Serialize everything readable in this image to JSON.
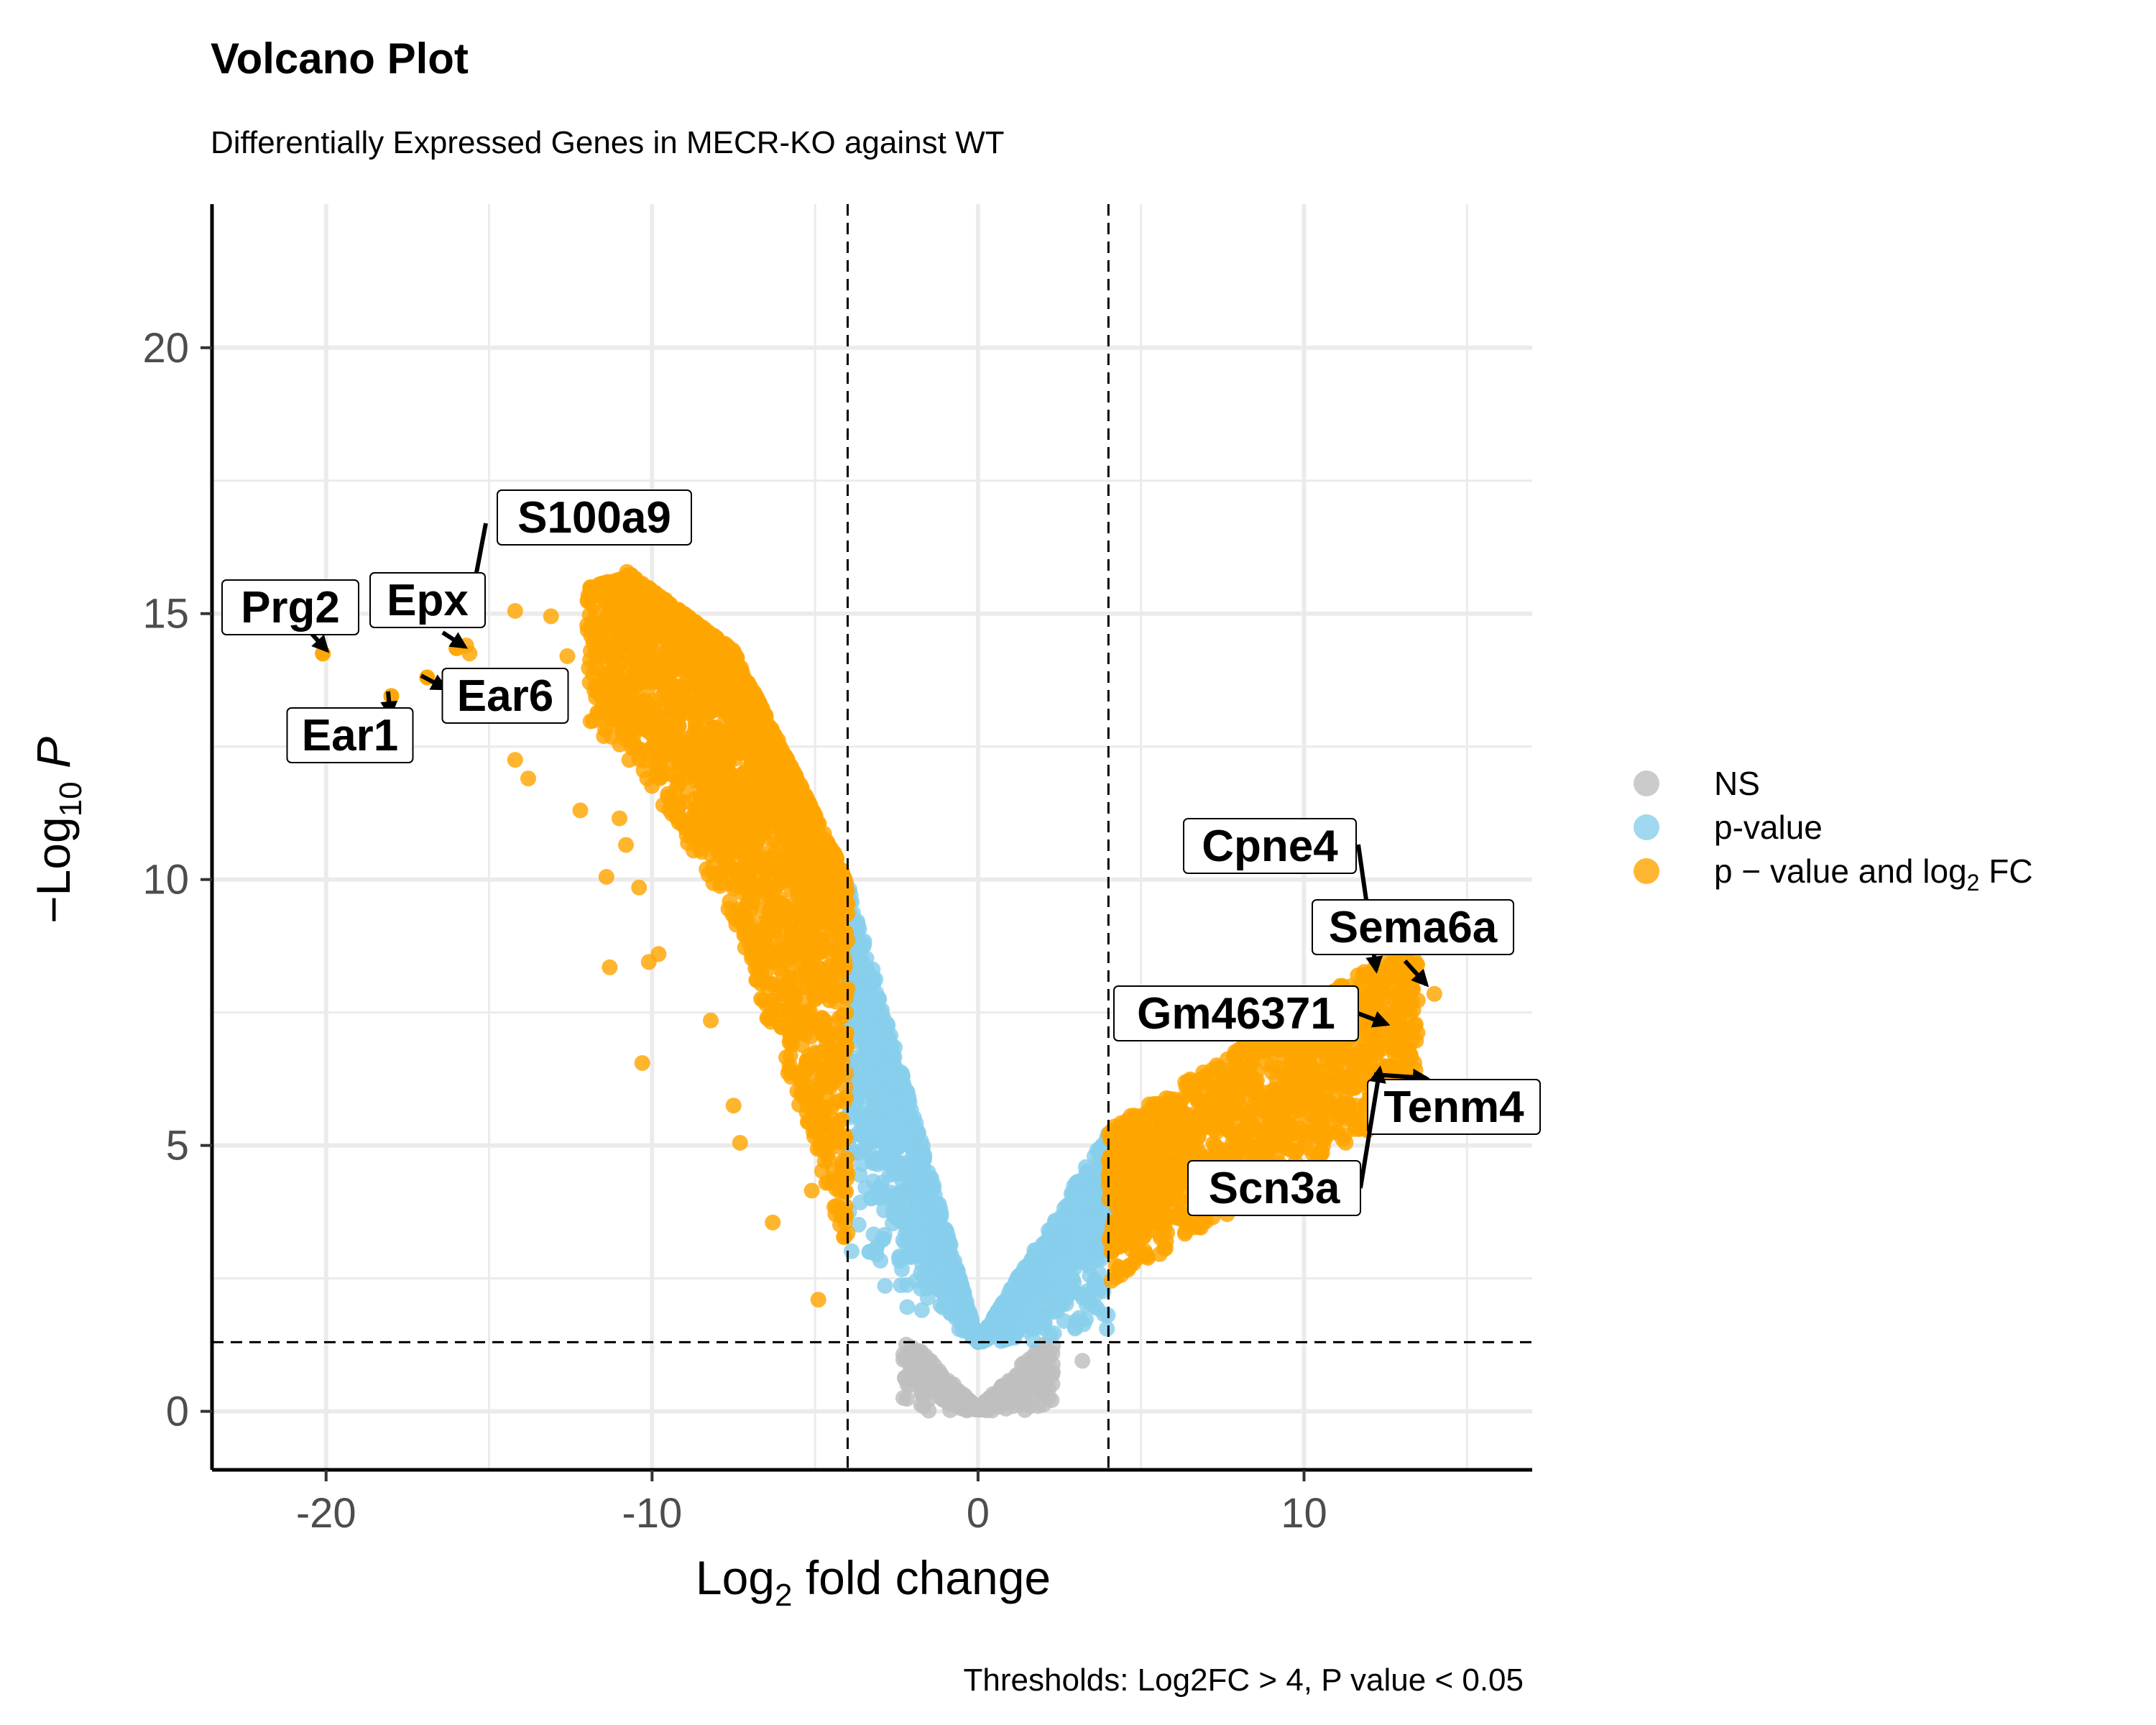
{
  "chart_data": {
    "type": "scatter",
    "title": "Volcano Plot",
    "subtitle": "Differentially Expressed Genes in MECR-KO against WT",
    "caption": "Thresholds: Log2FC > 4, P value < 0.05",
    "xlabel": {
      "pre": "Log",
      "sub": "2",
      "post": " fold change"
    },
    "ylabel": {
      "pre": "−Log",
      "sub": "10",
      "post": " P"
    },
    "xlim": [
      -23.5,
      17
    ],
    "ylim": [
      -1.1,
      22.7
    ],
    "x_ticks": [
      -20,
      -10,
      0,
      10
    ],
    "x_tick_labels": [
      "-20",
      "-10",
      "0",
      "10"
    ],
    "x_minor": [
      -15,
      -5,
      5,
      15
    ],
    "y_ticks": [
      0,
      5,
      10,
      15,
      20
    ],
    "y_tick_labels": [
      "0",
      "5",
      "10",
      "15",
      "20"
    ],
    "y_minor": [
      2.5,
      7.5,
      12.5,
      17.5
    ],
    "grid": true,
    "thresholds": {
      "log2fc": [
        -4,
        4
      ],
      "neg_log10_p": 1.3
    },
    "legend": {
      "position": "right",
      "items": [
        {
          "label": "NS",
          "color": "#bebebe"
        },
        {
          "label": "p-value",
          "color": "#87ceeb"
        },
        {
          "label_pre": "p − value and log",
          "label_sub": "2",
          "label_post": " FC",
          "color": "#ffa500"
        }
      ]
    },
    "colors": {
      "ns": "#bebebe",
      "p": "#87ceeb",
      "both": "#ffa500"
    },
    "series_shapes": {
      "ns": [
        {
          "x": [
            -2.2,
            0,
            2.2
          ],
          "y_top": [
            1.3,
            0,
            1.3
          ],
          "n": 260
        },
        {
          "x": [
            3.2
          ],
          "y": [
            0.95
          ]
        }
      ],
      "p_neg": {
        "x": [
          -4,
          0
        ],
        "y_top_at": [
          10,
          1.3
        ],
        "n": 900
      },
      "p_pos": {
        "x": [
          0,
          4
        ],
        "y_top_at": [
          1.3,
          5.3
        ],
        "n": 600
      },
      "both_neg": {
        "x_range": [
          -12,
          -4
        ],
        "n": 1800
      },
      "both_pos": {
        "x_range": [
          4,
          13.5
        ],
        "n": 1200
      }
    },
    "orange_outliers": {
      "x": [
        -20.1,
        -18.0,
        -16.9,
        -16.0,
        -15.6,
        -14.2,
        -13.8,
        -13.1,
        -12.6,
        -11.8,
        -11.2,
        -11.0,
        -10.8,
        -11.4,
        -14.2,
        -12.2,
        -11.1,
        -10.7,
        -10.1,
        -9.8,
        -11.3,
        -10.4,
        -10.3,
        -8.2,
        -7.5,
        -5.0,
        -7.3,
        -6.3,
        -5.1,
        -4.9
      ],
      "y": [
        14.25,
        13.45,
        13.8,
        14.35,
        14.25,
        12.25,
        11.9,
        14.95,
        14.2,
        15.15,
        13.05,
        11.15,
        10.65,
        10.05,
        15.05,
        11.3,
        13.5,
        12.25,
        8.45,
        8.6,
        8.35,
        9.85,
        6.55,
        7.35,
        5.75,
        6.75,
        5.05,
        3.55,
        4.15,
        2.1
      ]
    },
    "labeled_points": [
      {
        "gene": "S100a9",
        "x": -15.7,
        "y": 14.4
      },
      {
        "gene": "Prg2",
        "x": -20.1,
        "y": 14.25
      },
      {
        "gene": "Epx",
        "x": -16.0,
        "y": 14.35
      },
      {
        "gene": "Ear6",
        "x": -16.9,
        "y": 13.8
      },
      {
        "gene": "Ear1",
        "x": -18.0,
        "y": 13.45
      },
      {
        "gene": "Cpne4",
        "x": 12.5,
        "y": 8.35
      },
      {
        "gene": "Sema6a",
        "x": 14.0,
        "y": 7.85
      },
      {
        "gene": "Gm46371",
        "x": 12.0,
        "y": 7.85
      },
      {
        "gene": "Tenm4",
        "x": 12.7,
        "y": 7.25
      },
      {
        "gene": "Scn3a",
        "x": 12.4,
        "y": 6.5
      }
    ]
  }
}
